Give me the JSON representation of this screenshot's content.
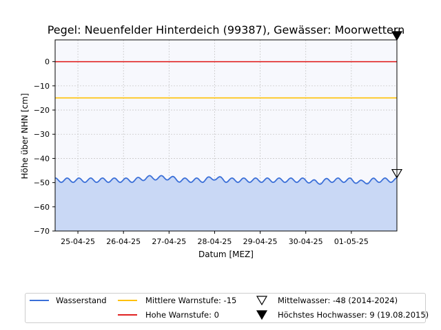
{
  "chart_data": {
    "type": "area",
    "title": "Pegel:  Neuenfelder Hinterdeich (99387), Gewässer:  Moorwettern",
    "xlabel": "Datum [MEZ]",
    "ylabel": "Höhe über NHN [cm]",
    "ylim": [
      -70,
      9
    ],
    "xlim": [
      "2025-04-24 12:00",
      "2025-05-02 00:00"
    ],
    "x_ticks": [
      "25-04-25",
      "26-04-25",
      "27-04-25",
      "28-04-25",
      "29-04-25",
      "30-04-25",
      "01-05-25"
    ],
    "y_ticks": [
      0,
      -10,
      -20,
      -30,
      -40,
      -50,
      -60,
      -70
    ],
    "grid": true,
    "legend_position": "bottom-center, outside plot",
    "series": [
      {
        "name": "Wasserstand",
        "color": "#3a6fd8",
        "fill": "#c9d8f5",
        "x": [
          "2025-04-24 12:00",
          "2025-04-24 18:00",
          "2025-04-25 00:00",
          "2025-04-25 06:00",
          "2025-04-25 12:00",
          "2025-04-25 18:00",
          "2025-04-26 00:00",
          "2025-04-26 06:00",
          "2025-04-26 12:00",
          "2025-04-26 18:00",
          "2025-04-27 00:00",
          "2025-04-27 06:00",
          "2025-04-27 12:00",
          "2025-04-27 18:00",
          "2025-04-28 00:00",
          "2025-04-28 06:00",
          "2025-04-28 12:00",
          "2025-04-28 18:00",
          "2025-04-29 00:00",
          "2025-04-29 06:00",
          "2025-04-29 12:00",
          "2025-04-29 18:00",
          "2025-04-30 00:00",
          "2025-04-30 06:00",
          "2025-04-30 12:00",
          "2025-04-30 18:00",
          "2025-05-01 00:00",
          "2025-05-01 06:00",
          "2025-05-01 12:00",
          "2025-05-01 18:00",
          "2025-05-02 00:00"
        ],
        "values": [
          -49,
          -49,
          -49,
          -49,
          -49,
          -49,
          -49,
          -49,
          -48,
          -48,
          -48,
          -49,
          -49,
          -49,
          -48,
          -49,
          -49,
          -49,
          -49,
          -49,
          -49,
          -49,
          -49,
          -50,
          -49,
          -49,
          -49,
          -50,
          -49,
          -49,
          -49
        ]
      },
      {
        "name": "Mittlere Warnstufe: -15",
        "color": "#ffc000",
        "value": -15
      },
      {
        "name": "Hohe Warnstufe: 0",
        "color": "#e02020",
        "value": 0
      }
    ],
    "markers": [
      {
        "name": "Mittelwasser: -48 (2014-2024)",
        "value": -48,
        "style": "open-triangle-down"
      },
      {
        "name": "Höchstes Hochwasser: 9 (19.08.2015)",
        "value": 9,
        "style": "filled-triangle-down"
      }
    ]
  },
  "legend": {
    "items": [
      {
        "label": "Wasserstand",
        "kind": "line",
        "color": "#3a6fd8"
      },
      {
        "label": "Hohe Warnstufe: 0",
        "kind": "line",
        "color": "#e02020"
      },
      {
        "label": "Mittlere Warnstufe: -15",
        "kind": "line",
        "color": "#ffc000"
      },
      {
        "label": "Mittelwasser: -48 (2014-2024)",
        "kind": "open-triangle"
      },
      {
        "label": "Höchstes Hochwasser: 9 (19.08.2015)",
        "kind": "filled-triangle"
      }
    ]
  },
  "colors": {
    "plot_background": "#f7f8fd",
    "grid": "#c8c8c8"
  }
}
